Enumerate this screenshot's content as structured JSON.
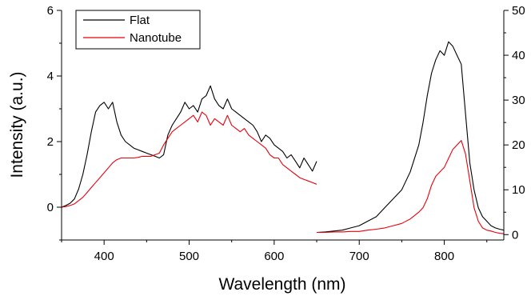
{
  "chart_data": {
    "type": "line",
    "xlabel": "Wavelength (nm)",
    "ylabel": "Intensity (a.u.)",
    "xlim": [
      350,
      870
    ],
    "ylim_left": [
      -1,
      6
    ],
    "ylim_right": [
      -1.2,
      50
    ],
    "x_ticks": [
      "400",
      "500",
      "600",
      "700",
      "800"
    ],
    "y_ticks_left": [
      "0",
      "2",
      "4",
      "6"
    ],
    "y_ticks_right": [
      "0",
      "10",
      "20",
      "30",
      "40",
      "50"
    ],
    "legend_position": "top-left",
    "grid": false,
    "series": [
      {
        "name": "Flat",
        "color": "#000000",
        "segments": [
          {
            "axis": "left",
            "x": [
              350,
              355,
              360,
              365,
              370,
              375,
              380,
              385,
              390,
              395,
              400,
              405,
              410,
              415,
              420,
              425,
              430,
              435,
              440,
              445,
              450,
              455,
              460,
              465,
              470,
              475,
              480,
              485,
              490,
              495,
              500,
              505,
              510,
              515,
              520,
              525,
              530,
              535,
              540,
              545,
              550,
              555,
              560,
              565,
              570,
              575,
              580,
              585,
              590,
              595,
              600,
              605,
              610,
              615,
              620,
              625,
              630,
              635,
              640,
              645,
              650
            ],
            "y": [
              0.0,
              0.05,
              0.12,
              0.25,
              0.55,
              1.0,
              1.6,
              2.3,
              2.9,
              3.1,
              3.2,
              3.0,
              3.2,
              2.6,
              2.2,
              2.0,
              1.9,
              1.8,
              1.75,
              1.7,
              1.65,
              1.6,
              1.55,
              1.5,
              1.6,
              2.2,
              2.5,
              2.7,
              2.9,
              3.2,
              3.0,
              3.1,
              2.9,
              3.3,
              3.4,
              3.7,
              3.3,
              3.1,
              3.0,
              3.3,
              3.0,
              2.9,
              2.8,
              2.7,
              2.6,
              2.5,
              2.3,
              2.0,
              2.2,
              2.1,
              1.9,
              1.8,
              1.7,
              1.5,
              1.6,
              1.4,
              1.2,
              1.5,
              1.3,
              1.1,
              1.4
            ]
          },
          {
            "axis": "right",
            "x": [
              650,
              660,
              670,
              680,
              690,
              700,
              710,
              720,
              730,
              740,
              750,
              760,
              770,
              775,
              780,
              785,
              790,
              795,
              800,
              805,
              810,
              815,
              820,
              825,
              830,
              835,
              840,
              845,
              850,
              855,
              860,
              865,
              870
            ],
            "y": [
              0.5,
              0.6,
              0.8,
              1.0,
              1.5,
              2.0,
              3.0,
              4.0,
              6.0,
              8.0,
              10.0,
              14.0,
              20.0,
              25.0,
              31.0,
              36.0,
              39.0,
              41.0,
              40.0,
              43.0,
              42.0,
              40.0,
              38.0,
              27.0,
              16.0,
              10.0,
              6.0,
              4.0,
              3.0,
              2.0,
              1.5,
              1.2,
              1.0
            ]
          }
        ]
      },
      {
        "name": "Nanotube",
        "color": "#e8000b",
        "segments": [
          {
            "axis": "left",
            "x": [
              350,
              355,
              360,
              365,
              370,
              375,
              380,
              385,
              390,
              395,
              400,
              405,
              410,
              415,
              420,
              425,
              430,
              435,
              440,
              445,
              450,
              455,
              460,
              465,
              470,
              475,
              480,
              485,
              490,
              495,
              500,
              505,
              510,
              515,
              520,
              525,
              530,
              535,
              540,
              545,
              550,
              555,
              560,
              565,
              570,
              575,
              580,
              585,
              590,
              595,
              600,
              605,
              610,
              615,
              620,
              625,
              630,
              635,
              640,
              645,
              650
            ],
            "y": [
              0.0,
              0.02,
              0.05,
              0.1,
              0.2,
              0.3,
              0.45,
              0.6,
              0.75,
              0.9,
              1.05,
              1.2,
              1.35,
              1.45,
              1.5,
              1.5,
              1.5,
              1.5,
              1.52,
              1.55,
              1.55,
              1.55,
              1.6,
              1.65,
              1.9,
              2.1,
              2.3,
              2.4,
              2.5,
              2.6,
              2.7,
              2.8,
              2.6,
              2.9,
              2.8,
              2.5,
              2.7,
              2.6,
              2.5,
              2.8,
              2.5,
              2.4,
              2.3,
              2.4,
              2.2,
              2.1,
              2.0,
              1.9,
              1.8,
              1.6,
              1.5,
              1.5,
              1.3,
              1.2,
              1.1,
              1.0,
              0.9,
              0.85,
              0.8,
              0.75,
              0.7
            ]
          },
          {
            "axis": "right",
            "x": [
              650,
              660,
              670,
              680,
              690,
              700,
              710,
              720,
              730,
              740,
              750,
              760,
              770,
              775,
              780,
              785,
              790,
              795,
              800,
              805,
              810,
              815,
              820,
              825,
              830,
              835,
              840,
              845,
              850,
              855,
              860,
              865,
              870
            ],
            "y": [
              0.5,
              0.5,
              0.6,
              0.6,
              0.7,
              0.7,
              1.0,
              1.2,
              1.5,
              2.0,
              2.5,
              3.5,
              5.0,
              6.0,
              8.0,
              11.0,
              13.0,
              14.0,
              15.0,
              17.0,
              19.0,
              20.0,
              21.0,
              18.0,
              12.0,
              6.0,
              3.0,
              1.5,
              1.0,
              0.8,
              0.5,
              0.3,
              0.2
            ]
          }
        ]
      }
    ]
  }
}
